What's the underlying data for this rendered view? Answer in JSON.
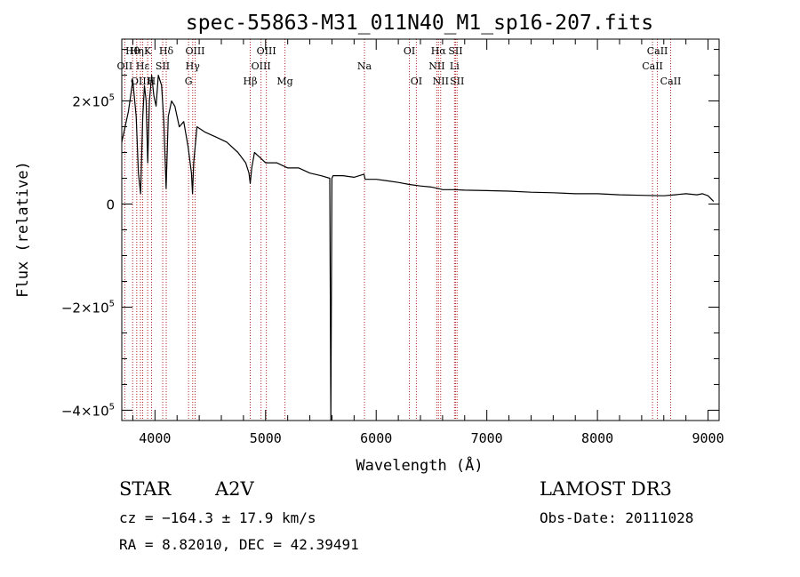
{
  "chart_data": {
    "type": "line",
    "title": "spec-55863-M31_011N40_M1_sp16-207.fits",
    "xlabel": "Wavelength (Å)",
    "ylabel": "Flux (relative)",
    "xlim": [
      3700,
      9100
    ],
    "ylim": [
      -420000,
      320000
    ],
    "x_ticks": [
      4000,
      5000,
      6000,
      7000,
      8000,
      9000
    ],
    "x_tick_labels": [
      "4000",
      "5000",
      "6000",
      "7000",
      "8000",
      "9000"
    ],
    "y_ticks": [
      -400000,
      -200000,
      0,
      200000
    ],
    "y_tick_labels": [
      {
        "mantissa": "−4×10",
        "exp": "5"
      },
      {
        "mantissa": "−2×10",
        "exp": "5"
      },
      {
        "mantissa": "0",
        "exp": ""
      },
      {
        "mantissa": "2×10",
        "exp": "5"
      }
    ],
    "series": [
      {
        "name": "spectrum",
        "x": [
          3700,
          3760,
          3800,
          3830,
          3850,
          3870,
          3890,
          3905,
          3920,
          3935,
          3950,
          3970,
          3990,
          4010,
          4030,
          4060,
          4080,
          4101,
          4120,
          4150,
          4180,
          4220,
          4260,
          4300,
          4330,
          4340,
          4350,
          4380,
          4450,
          4550,
          4650,
          4750,
          4820,
          4850,
          4861,
          4875,
          4900,
          4950,
          5000,
          5100,
          5200,
          5300,
          5400,
          5500,
          5580,
          5590,
          5600,
          5610,
          5700,
          5800,
          5890,
          5900,
          6000,
          6100,
          6200,
          6300,
          6400,
          6500,
          6563,
          6600,
          6700,
          6800,
          7000,
          7200,
          7400,
          7600,
          7800,
          8000,
          8200,
          8400,
          8600,
          8700,
          8800,
          8900,
          8950,
          9000,
          9050
        ],
        "y": [
          120000,
          180000,
          240000,
          170000,
          60000,
          20000,
          170000,
          230000,
          200000,
          80000,
          200000,
          250000,
          210000,
          190000,
          250000,
          230000,
          160000,
          30000,
          170000,
          200000,
          190000,
          150000,
          160000,
          110000,
          60000,
          20000,
          80000,
          150000,
          140000,
          130000,
          120000,
          100000,
          80000,
          60000,
          40000,
          70000,
          100000,
          90000,
          80000,
          80000,
          70000,
          70000,
          60000,
          55000,
          50000,
          -420000,
          50000,
          55000,
          55000,
          52000,
          58000,
          48000,
          48000,
          45000,
          42000,
          38000,
          35000,
          33000,
          30000,
          28000,
          28000,
          27000,
          26000,
          25000,
          23000,
          22000,
          20000,
          20000,
          18000,
          17000,
          16000,
          18000,
          20000,
          18000,
          20000,
          16000,
          5000
        ]
      }
    ],
    "line_markers": [
      {
        "label": "OII",
        "x": 3727,
        "row": 2
      },
      {
        "label": "Hθ",
        "x": 3798,
        "row": 1
      },
      {
        "label": "OIII",
        "x": 3869,
        "row": 3
      },
      {
        "label": "Hη",
        "x": 3835,
        "row": 1
      },
      {
        "label": "Hε",
        "x": 3889,
        "row": 2
      },
      {
        "label": "K",
        "x": 3934,
        "row": 1
      },
      {
        "label": "H",
        "x": 3969,
        "row": 3
      },
      {
        "label": "SII",
        "x": 4070,
        "row": 2
      },
      {
        "label": "Hδ",
        "x": 4102,
        "row": 1
      },
      {
        "label": "G",
        "x": 4304,
        "row": 3
      },
      {
        "label": "Hγ",
        "x": 4341,
        "row": 2
      },
      {
        "label": "OIII",
        "x": 4363,
        "row": 1
      },
      {
        "label": "Hβ",
        "x": 4861,
        "row": 3
      },
      {
        "label": "OIII",
        "x": 4959,
        "row": 2
      },
      {
        "label": "OIII",
        "x": 5007,
        "row": 1
      },
      {
        "label": "Mg",
        "x": 5175,
        "row": 3
      },
      {
        "label": "Na",
        "x": 5894,
        "row": 2
      },
      {
        "label": "OI",
        "x": 6300,
        "row": 1
      },
      {
        "label": "OI",
        "x": 6363,
        "row": 3
      },
      {
        "label": "NII",
        "x": 6548,
        "row": 2
      },
      {
        "label": "Hα",
        "x": 6563,
        "row": 1
      },
      {
        "label": "NII",
        "x": 6583,
        "row": 3
      },
      {
        "label": "Li",
        "x": 6708,
        "row": 2
      },
      {
        "label": "SII",
        "x": 6717,
        "row": 1
      },
      {
        "label": "SII",
        "x": 6731,
        "row": 3
      },
      {
        "label": "CaII",
        "x": 8498,
        "row": 2
      },
      {
        "label": "CaII",
        "x": 8542,
        "row": 1
      },
      {
        "label": "CaII",
        "x": 8662,
        "row": 3
      }
    ],
    "colors": {
      "spectrum": "#000000",
      "line_marker": "#b22222",
      "axes": "#000000"
    }
  },
  "info": {
    "star_label": "STAR",
    "spectral_type": "A2V",
    "survey": "LAMOST DR3",
    "cz": "cz = −164.3 ± 17.9 km/s",
    "obs_date": "Obs-Date: 20111028",
    "radec": "RA =   8.82010, DEC =  42.39491"
  }
}
